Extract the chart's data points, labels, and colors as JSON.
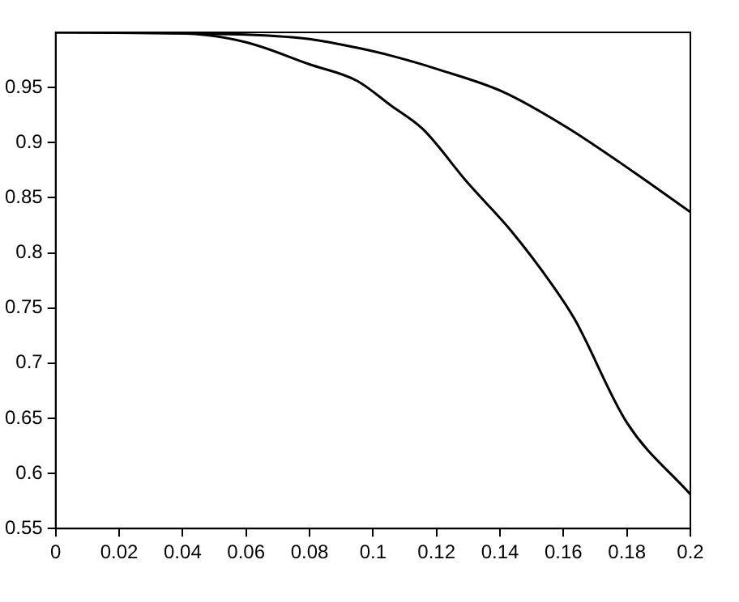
{
  "chart_data": {
    "type": "line",
    "xlim": [
      0,
      0.2
    ],
    "ylim": [
      0.55,
      1
    ],
    "xticks": [
      0,
      0.02,
      0.04,
      0.06,
      0.08,
      0.1,
      0.12,
      0.14,
      0.16,
      0.18,
      0.2
    ],
    "yticks": [
      0.55,
      0.6,
      0.65,
      0.7,
      0.75,
      0.8,
      0.85,
      0.9,
      0.95
    ],
    "grid": false,
    "legend": false,
    "marker": "none",
    "series": [
      {
        "color": "#000000",
        "x": [
          0,
          0.04,
          0.06,
          0.08,
          0.095,
          0.1055,
          0.121,
          0.141,
          0.161,
          0.1818,
          0.2
        ],
        "values": [
          1,
          0.999,
          0.998,
          0.994,
          0.986,
          0.979,
          0.966,
          0.946,
          0.914,
          0.874,
          0.837
        ]
      },
      {
        "color": "#000000",
        "x": [
          0,
          0.04,
          0.06,
          0.08,
          0.095,
          0.1055,
          0.1158,
          0.1297,
          0.1435,
          0.1567,
          0.1635,
          0.18,
          0.2
        ],
        "values": [
          1,
          0.999,
          0.991,
          0.971,
          0.956,
          0.934,
          0.912,
          0.864,
          0.82,
          0.77,
          0.74,
          0.646,
          0.581
        ]
      }
    ]
  }
}
